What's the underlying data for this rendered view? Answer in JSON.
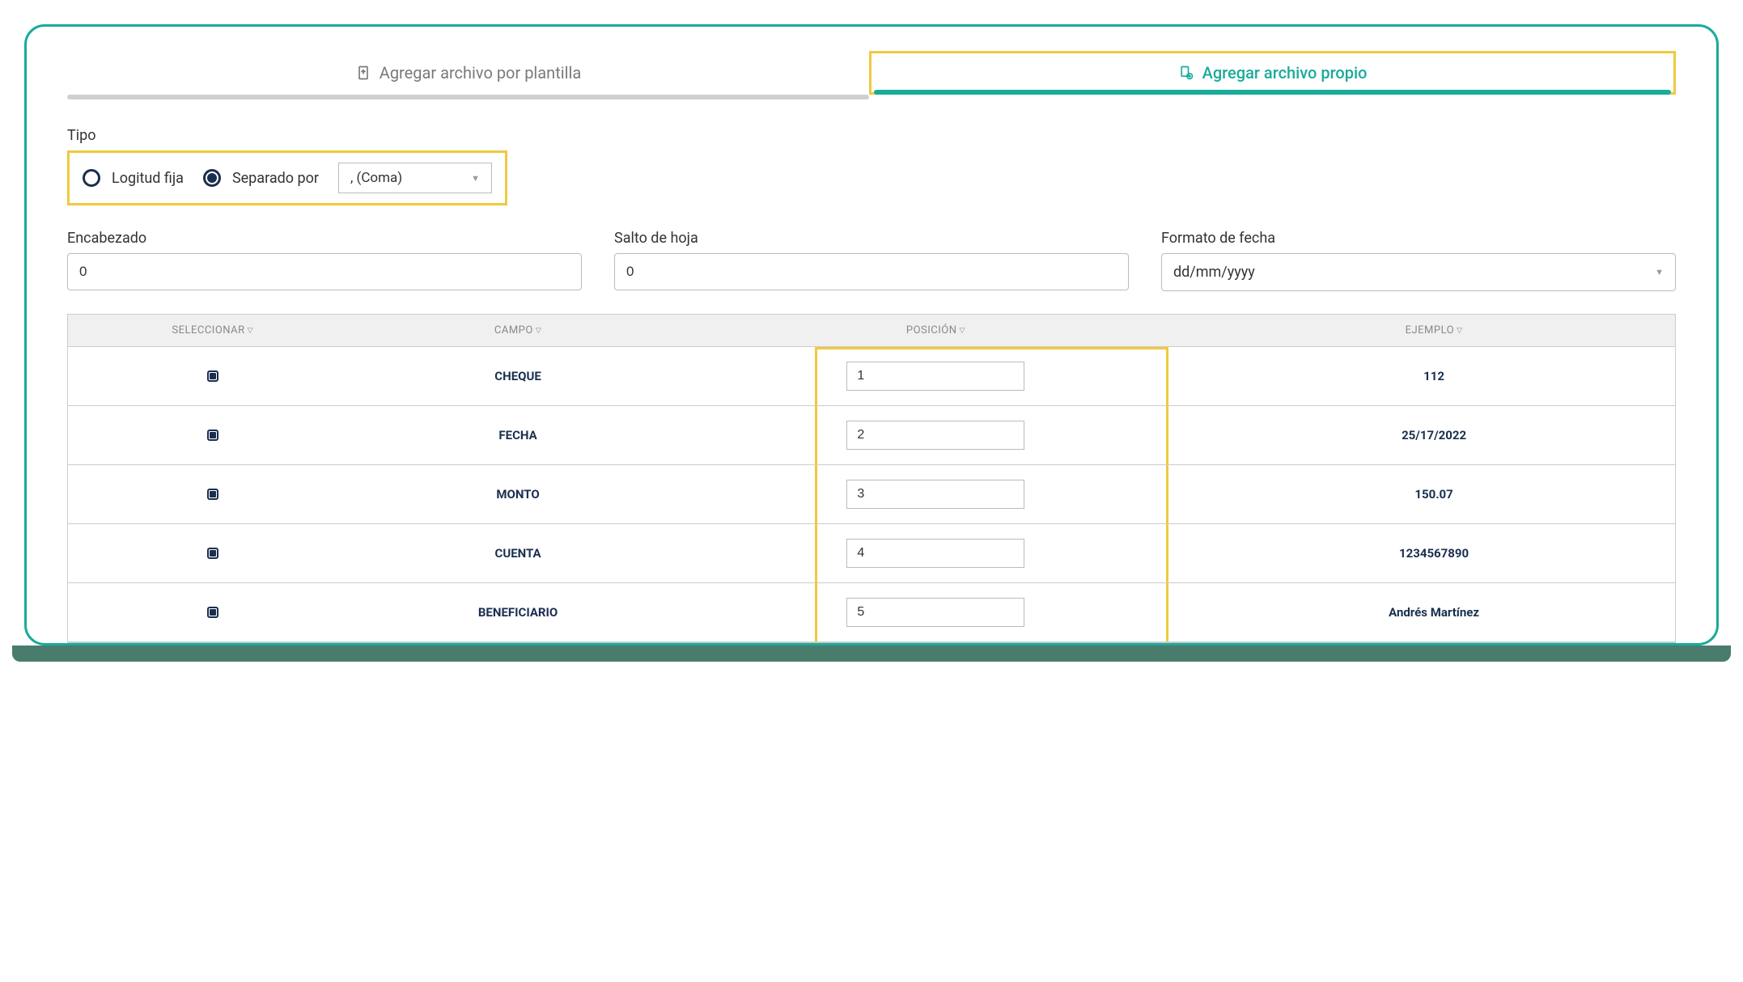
{
  "tabs": {
    "inactive": "Agregar archivo por plantilla",
    "active": "Agregar archivo propio"
  },
  "tipo": {
    "label": "Tipo",
    "radio1": "Logitud fija",
    "radio2": "Separado por",
    "selectValue": ", (Coma)"
  },
  "inputs": {
    "encabezado": {
      "label": "Encabezado",
      "value": "0"
    },
    "salto": {
      "label": "Salto de hoja",
      "value": "0"
    },
    "fecha": {
      "label": "Formato de fecha",
      "value": "dd/mm/yyyy"
    }
  },
  "table": {
    "headers": {
      "seleccionar": "Seleccionar",
      "campo": "Campo",
      "posicion": "Posición",
      "ejemplo": "Ejemplo"
    },
    "rows": [
      {
        "campo": "CHEQUE",
        "posicion": "1",
        "ejemplo": "112"
      },
      {
        "campo": "FECHA",
        "posicion": "2",
        "ejemplo": "25/17/2022"
      },
      {
        "campo": "MONTO",
        "posicion": "3",
        "ejemplo": "150.07"
      },
      {
        "campo": "CUENTA",
        "posicion": "4",
        "ejemplo": "1234567890"
      },
      {
        "campo": "BENEFICIARIO",
        "posicion": "5",
        "ejemplo": "Andrés Martínez"
      }
    ]
  },
  "colors": {
    "accent": "#1aab9b",
    "highlight": "#f0c93e",
    "darkNavy": "#1a2f4f"
  }
}
